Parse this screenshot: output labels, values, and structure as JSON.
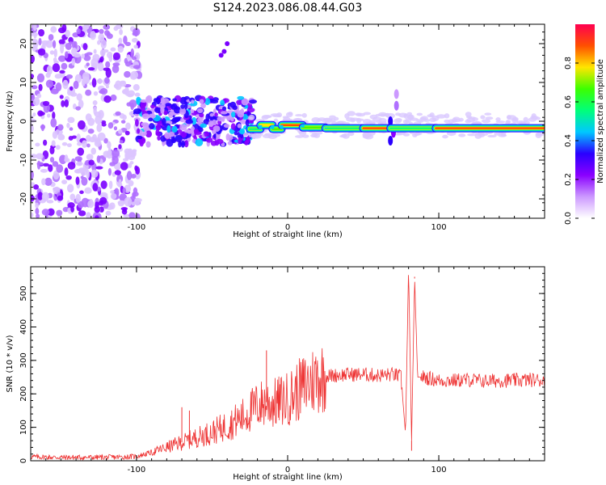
{
  "title": "S124.2023.086.08.44.G03",
  "chart_data": [
    {
      "type": "heatmap",
      "title": "S124.2023.086.08.44.G03",
      "xlabel": "Height of straight line (km)",
      "ylabel": "Frequency (Hz)",
      "xlim": [
        -170,
        170
      ],
      "ylim": [
        -25,
        25
      ],
      "xticks": [
        -100,
        0,
        100
      ],
      "yticks": [
        -20,
        -10,
        0,
        10,
        20
      ],
      "colorbar": {
        "label": "Normalized spectral amplitude",
        "range": [
          0,
          1
        ],
        "ticks": [
          0.0,
          0.2,
          0.4,
          0.6,
          0.8
        ],
        "colormap": [
          "#ffffff",
          "#cc99ff",
          "#8a00ff",
          "#2a00ff",
          "#00c8ff",
          "#00ff7a",
          "#3cff00",
          "#ffe600",
          "#ff5000",
          "#ff0050"
        ]
      },
      "line_segments": [
        {
          "x": [
            -25,
            -18
          ],
          "y": -2.0,
          "amplitude": 0.6
        },
        {
          "x": [
            -18,
            -10
          ],
          "y": -1.0,
          "amplitude": 0.85
        },
        {
          "x": [
            -10,
            -4
          ],
          "y": -2.0,
          "amplitude": 0.7
        },
        {
          "x": [
            -4,
            10
          ],
          "y": -1.0,
          "amplitude": 0.9
        },
        {
          "x": [
            10,
            25
          ],
          "y": -1.6,
          "amplitude": 0.75
        },
        {
          "x": [
            25,
            50
          ],
          "y": -1.8,
          "amplitude": 0.65
        },
        {
          "x": [
            50,
            68
          ],
          "y": -1.8,
          "amplitude": 0.9
        },
        {
          "x": [
            68,
            98
          ],
          "y": -1.8,
          "amplitude": 0.6
        },
        {
          "x": [
            98,
            170
          ],
          "y": -1.8,
          "amplitude": 0.95
        }
      ]
    },
    {
      "type": "line",
      "xlabel": "Height of straight line (km)",
      "ylabel": "SNR (10 * v/v)",
      "xlim": [
        -170,
        170
      ],
      "ylim": [
        0,
        580
      ],
      "xticks": [
        -100,
        0,
        100
      ],
      "yticks": [
        0,
        100,
        200,
        300,
        400,
        500
      ],
      "color": "#ee3333",
      "x": [
        -170,
        -150,
        -130,
        -110,
        -100,
        -90,
        -80,
        -70,
        -60,
        -50,
        -40,
        -30,
        -20,
        -14,
        -10,
        0,
        10,
        20,
        30,
        40,
        50,
        60,
        70,
        75,
        78,
        80,
        82,
        84,
        86,
        90,
        100,
        110,
        120,
        130,
        140,
        150,
        160,
        170
      ],
      "y": [
        12,
        10,
        10,
        11,
        13,
        25,
        40,
        55,
        70,
        85,
        105,
        130,
        165,
        175,
        170,
        185,
        220,
        250,
        255,
        258,
        258,
        255,
        258,
        250,
        80,
        580,
        60,
        550,
        250,
        250,
        240,
        240,
        242,
        238,
        240,
        240,
        242,
        240
      ],
      "spikes": [
        {
          "x": -70,
          "y": 160
        },
        {
          "x": -65,
          "y": 150
        },
        {
          "x": -14,
          "y": 330
        },
        {
          "x": 80,
          "y": 580
        },
        {
          "x": 82,
          "y": 30
        },
        {
          "x": 84,
          "y": 545
        }
      ]
    }
  ]
}
